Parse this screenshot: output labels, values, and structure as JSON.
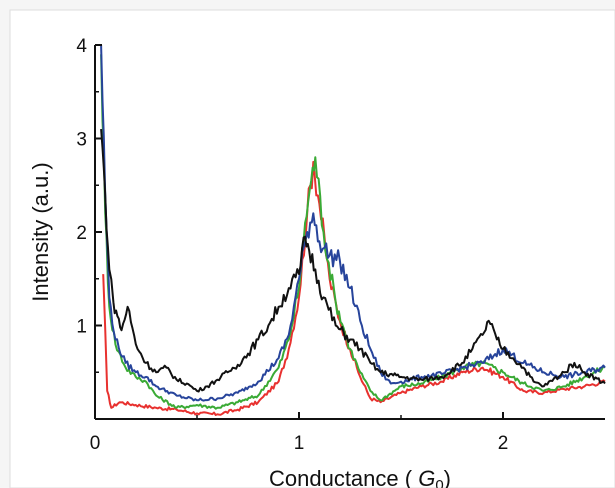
{
  "chart_data": {
    "type": "line",
    "title": "",
    "xlabel": "Conductance",
    "xlabel_symbol": "G",
    "xlabel_subscript": "0",
    "ylabel": "Intensity (a.u.)",
    "xlim": [
      0,
      2.5
    ],
    "ylim": [
      0,
      4
    ],
    "x_ticks": [
      0,
      1,
      2
    ],
    "x_tick_labels": [
      "0",
      "1",
      "2"
    ],
    "y_ticks": [
      1,
      2,
      3,
      4
    ],
    "y_tick_labels": [
      "1",
      "2",
      "3",
      "4"
    ],
    "grid": false,
    "legend": "none",
    "series": [
      {
        "color": "#e8312f",
        "points": [
          [
            0.04,
            1.55
          ],
          [
            0.06,
            0.3
          ],
          [
            0.08,
            0.12
          ],
          [
            0.12,
            0.18
          ],
          [
            0.2,
            0.15
          ],
          [
            0.3,
            0.12
          ],
          [
            0.4,
            0.1
          ],
          [
            0.5,
            0.06
          ],
          [
            0.6,
            0.05
          ],
          [
            0.7,
            0.1
          ],
          [
            0.8,
            0.18
          ],
          [
            0.9,
            0.4
          ],
          [
            0.95,
            0.75
          ],
          [
            1.0,
            1.3
          ],
          [
            1.04,
            2.2
          ],
          [
            1.07,
            2.75
          ],
          [
            1.1,
            2.3
          ],
          [
            1.15,
            1.5
          ],
          [
            1.2,
            1.05
          ],
          [
            1.25,
            0.75
          ],
          [
            1.3,
            0.45
          ],
          [
            1.35,
            0.22
          ],
          [
            1.4,
            0.18
          ],
          [
            1.5,
            0.28
          ],
          [
            1.6,
            0.35
          ],
          [
            1.7,
            0.4
          ],
          [
            1.8,
            0.5
          ],
          [
            1.9,
            0.55
          ],
          [
            2.0,
            0.45
          ],
          [
            2.1,
            0.3
          ],
          [
            2.2,
            0.28
          ],
          [
            2.3,
            0.32
          ],
          [
            2.4,
            0.35
          ],
          [
            2.5,
            0.4
          ]
        ]
      },
      {
        "color": "#3aaa35",
        "points": [
          [
            0.03,
            3.9
          ],
          [
            0.05,
            2.2
          ],
          [
            0.07,
            1.2
          ],
          [
            0.1,
            0.8
          ],
          [
            0.15,
            0.55
          ],
          [
            0.2,
            0.45
          ],
          [
            0.25,
            0.4
          ],
          [
            0.3,
            0.25
          ],
          [
            0.4,
            0.12
          ],
          [
            0.5,
            0.15
          ],
          [
            0.6,
            0.12
          ],
          [
            0.7,
            0.18
          ],
          [
            0.8,
            0.25
          ],
          [
            0.9,
            0.55
          ],
          [
            0.95,
            0.85
          ],
          [
            1.0,
            1.4
          ],
          [
            1.03,
            2.1
          ],
          [
            1.06,
            2.55
          ],
          [
            1.08,
            2.8
          ],
          [
            1.12,
            2.0
          ],
          [
            1.18,
            1.25
          ],
          [
            1.25,
            0.75
          ],
          [
            1.3,
            0.5
          ],
          [
            1.35,
            0.3
          ],
          [
            1.4,
            0.2
          ],
          [
            1.5,
            0.35
          ],
          [
            1.6,
            0.38
          ],
          [
            1.7,
            0.45
          ],
          [
            1.8,
            0.55
          ],
          [
            1.9,
            0.6
          ],
          [
            2.0,
            0.5
          ],
          [
            2.1,
            0.38
          ],
          [
            2.2,
            0.3
          ],
          [
            2.3,
            0.35
          ],
          [
            2.4,
            0.45
          ],
          [
            2.5,
            0.55
          ]
        ]
      },
      {
        "color": "#27449b",
        "points": [
          [
            0.03,
            4.0
          ],
          [
            0.05,
            2.4
          ],
          [
            0.07,
            1.3
          ],
          [
            0.1,
            0.85
          ],
          [
            0.15,
            0.6
          ],
          [
            0.2,
            0.5
          ],
          [
            0.25,
            0.45
          ],
          [
            0.3,
            0.35
          ],
          [
            0.4,
            0.25
          ],
          [
            0.5,
            0.2
          ],
          [
            0.6,
            0.22
          ],
          [
            0.7,
            0.28
          ],
          [
            0.8,
            0.4
          ],
          [
            0.9,
            0.65
          ],
          [
            0.95,
            0.9
          ],
          [
            1.0,
            1.5
          ],
          [
            1.04,
            2.0
          ],
          [
            1.07,
            2.2
          ],
          [
            1.1,
            1.9
          ],
          [
            1.15,
            1.75
          ],
          [
            1.2,
            1.7
          ],
          [
            1.25,
            1.4
          ],
          [
            1.3,
            1.05
          ],
          [
            1.35,
            0.75
          ],
          [
            1.4,
            0.5
          ],
          [
            1.45,
            0.38
          ],
          [
            1.5,
            0.4
          ],
          [
            1.6,
            0.45
          ],
          [
            1.7,
            0.48
          ],
          [
            1.8,
            0.55
          ],
          [
            1.9,
            0.6
          ],
          [
            2.0,
            0.75
          ],
          [
            2.1,
            0.6
          ],
          [
            2.2,
            0.5
          ],
          [
            2.3,
            0.45
          ],
          [
            2.4,
            0.5
          ],
          [
            2.5,
            0.55
          ]
        ]
      },
      {
        "color": "#111111",
        "points": [
          [
            0.03,
            3.1
          ],
          [
            0.05,
            2.4
          ],
          [
            0.07,
            1.6
          ],
          [
            0.09,
            1.25
          ],
          [
            0.11,
            1.1
          ],
          [
            0.13,
            0.95
          ],
          [
            0.16,
            1.2
          ],
          [
            0.2,
            0.8
          ],
          [
            0.25,
            0.6
          ],
          [
            0.3,
            0.5
          ],
          [
            0.35,
            0.55
          ],
          [
            0.4,
            0.42
          ],
          [
            0.45,
            0.38
          ],
          [
            0.5,
            0.3
          ],
          [
            0.55,
            0.35
          ],
          [
            0.6,
            0.42
          ],
          [
            0.65,
            0.5
          ],
          [
            0.7,
            0.58
          ],
          [
            0.75,
            0.7
          ],
          [
            0.8,
            0.85
          ],
          [
            0.85,
            1.0
          ],
          [
            0.9,
            1.2
          ],
          [
            0.95,
            1.4
          ],
          [
            1.0,
            1.55
          ],
          [
            1.03,
            1.95
          ],
          [
            1.05,
            1.8
          ],
          [
            1.08,
            1.6
          ],
          [
            1.12,
            1.3
          ],
          [
            1.18,
            1.0
          ],
          [
            1.25,
            0.85
          ],
          [
            1.3,
            0.75
          ],
          [
            1.35,
            0.6
          ],
          [
            1.4,
            0.5
          ],
          [
            1.5,
            0.45
          ],
          [
            1.6,
            0.42
          ],
          [
            1.7,
            0.45
          ],
          [
            1.8,
            0.6
          ],
          [
            1.85,
            0.75
          ],
          [
            1.9,
            0.9
          ],
          [
            1.93,
            1.05
          ],
          [
            1.97,
            0.85
          ],
          [
            2.0,
            0.75
          ],
          [
            2.05,
            0.65
          ],
          [
            2.1,
            0.55
          ],
          [
            2.15,
            0.4
          ],
          [
            2.2,
            0.35
          ],
          [
            2.3,
            0.5
          ],
          [
            2.35,
            0.6
          ],
          [
            2.4,
            0.5
          ],
          [
            2.5,
            0.38
          ]
        ]
      }
    ]
  }
}
